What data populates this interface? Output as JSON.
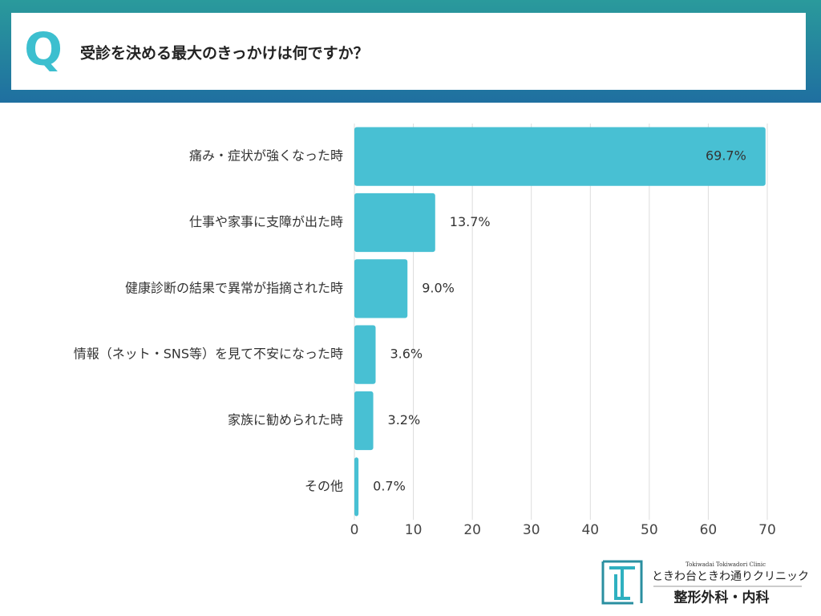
{
  "header": {
    "badge": "Q"
  },
  "logo": {
    "romaji": "Tokiwadai Tokiwadori Clinic",
    "name": "ときわ台ときわ通りクリニック",
    "department": "整形外科・内科"
  },
  "chart_data": {
    "type": "hbar",
    "title": "受診を決める最大のきっかけは何ですか？",
    "categories": [
      "痛み・症状が強くなった時",
      "仕事や家事に支障が出た時",
      "健康診断の結果で異常が指摘された時",
      "情報（ネット・SNS等）を見て不安になった時",
      "家族に勧められた時",
      "その他"
    ],
    "values": [
      69.7,
      13.7,
      9.0,
      3.6,
      3.2,
      0.7
    ],
    "value_labels": [
      "69.7%",
      "13.7%",
      "9.0%",
      "3.6%",
      "3.2%",
      "0.7%"
    ],
    "color": "#48c0d3",
    "xlim": [
      0,
      70
    ],
    "xticks": [
      0,
      10,
      20,
      30,
      40,
      50,
      60,
      70
    ],
    "grid": true
  }
}
